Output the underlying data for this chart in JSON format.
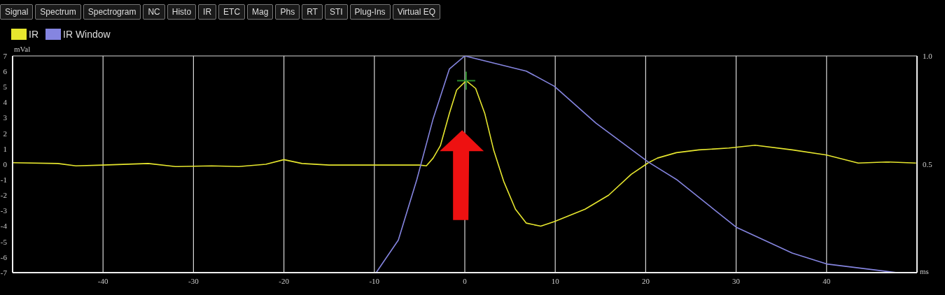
{
  "chart_data": {
    "type": "line",
    "xlabel": "ms",
    "ylabel": "mVal",
    "annotations": [
      "Signal",
      "Spectrum",
      "Spectrogram",
      "NC",
      "Histo",
      "IR",
      "ETC",
      "Mag",
      "Phs",
      "RT",
      "STI",
      "Plug-Ins",
      "Virtual EQ"
    ],
    "xlim": [
      -50,
      50
    ],
    "xticks": [
      -40,
      -30,
      -20,
      -10,
      0,
      10,
      20,
      30,
      40
    ],
    "ylim": [
      -7,
      7
    ],
    "yticks": [
      -7,
      -6,
      -5,
      -4,
      -3,
      -2,
      -1,
      0,
      1,
      2,
      3,
      4,
      5,
      6,
      7
    ],
    "y2lim": [
      0,
      1
    ],
    "y2ticks": [
      0.5,
      {
        "value": 1,
        "label": "1.0"
      }
    ],
    "grid": true,
    "legend": "top left",
    "marker": "none",
    "line_style": "solid",
    "series": [
      {
        "name": "IR",
        "color": "#e6e62e",
        "x": [
          -50,
          -45,
          -43,
          -40,
          -35,
          -32,
          -28,
          -25,
          -22,
          -20,
          -18,
          -15,
          -10,
          -5,
          -4.25,
          -3.5,
          -2.7,
          -1.7,
          -0.9,
          0.15,
          1.2,
          2.2,
          3.2,
          4.3,
          5.6,
          6.8,
          8.4,
          9.9,
          13.3,
          15.9,
          18.4,
          20.3,
          21.3,
          23.4,
          25.9,
          29.2,
          32.1,
          36.2,
          40,
          43.5,
          46.6,
          49.9
        ],
        "values": [
          0.1,
          0.05,
          -0.1,
          -0.05,
          0.05,
          -0.15,
          -0.1,
          -0.15,
          0,
          0.3,
          0.05,
          -0.05,
          -0.05,
          -0.05,
          -0.1,
          0.4,
          1.2,
          3.3,
          4.8,
          5.4,
          4.9,
          3.3,
          0.9,
          -1.1,
          -2.9,
          -3.8,
          -4.0,
          -3.7,
          -2.9,
          -2.0,
          -0.65,
          0.1,
          0.4,
          0.75,
          0.93,
          1.05,
          1.23,
          0.93,
          0.6,
          0.08,
          0.15,
          0.08
        ]
      },
      {
        "name": "IR Window",
        "color": "#8585e0",
        "axis": "y2",
        "x": [
          -9.8,
          -7.35,
          -5.3,
          -3.5,
          -1.7,
          0,
          6.8,
          9.9,
          14.5,
          20.3,
          23.4,
          30,
          36.2,
          40,
          47.8,
          50
        ],
        "values": [
          0,
          0.15,
          0.43,
          0.71,
          0.94,
          1.0,
          0.93,
          0.86,
          0.69,
          0.51,
          0.43,
          0.21,
          0.09,
          0.04,
          0,
          0
        ]
      }
    ]
  }
}
